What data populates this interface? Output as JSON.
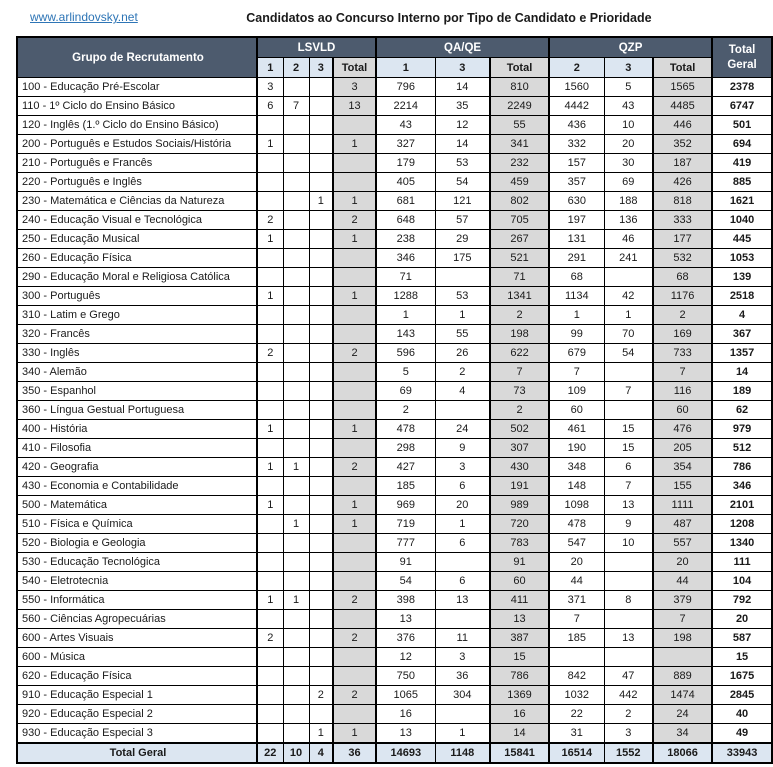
{
  "header": {
    "link": "www.arlindovsky.net",
    "title": "Candidatos ao Concurso Interno por Tipo de Candidato e Prioridade"
  },
  "colors": {
    "header_bg": "#4D5B6E",
    "subheader_blue": "#DCE6F1",
    "total_gray": "#D9D9D9",
    "footer_blue": "#DCE6F1",
    "link_blue": "#2E75B6"
  },
  "table": {
    "name_header": "Grupo de Recrutamento",
    "total_header": "Total Geral",
    "groups": [
      {
        "label": "LSVLD",
        "sub": [
          "1",
          "2",
          "3",
          "Total"
        ]
      },
      {
        "label": "QA/QE",
        "sub": [
          "1",
          "3",
          "Total"
        ]
      },
      {
        "label": "QZP",
        "sub": [
          "2",
          "3",
          "Total"
        ]
      }
    ],
    "rows": [
      {
        "name": "100 - Educação Pré-Escolar",
        "values": [
          "3",
          "",
          "",
          "3",
          "796",
          "14",
          "810",
          "1560",
          "5",
          "1565",
          "2378"
        ]
      },
      {
        "name": "110 - 1º Ciclo do Ensino Básico",
        "values": [
          "6",
          "7",
          "",
          "13",
          "2214",
          "35",
          "2249",
          "4442",
          "43",
          "4485",
          "6747"
        ]
      },
      {
        "name": "120 - Inglês (1.º Ciclo do Ensino Básico)",
        "values": [
          "",
          "",
          "",
          "",
          "43",
          "12",
          "55",
          "436",
          "10",
          "446",
          "501"
        ]
      },
      {
        "name": "200 - Português e Estudos Sociais/História",
        "values": [
          "1",
          "",
          "",
          "1",
          "327",
          "14",
          "341",
          "332",
          "20",
          "352",
          "694"
        ]
      },
      {
        "name": "210 - Português e Francês",
        "values": [
          "",
          "",
          "",
          "",
          "179",
          "53",
          "232",
          "157",
          "30",
          "187",
          "419"
        ]
      },
      {
        "name": "220 - Português e Inglês",
        "values": [
          "",
          "",
          "",
          "",
          "405",
          "54",
          "459",
          "357",
          "69",
          "426",
          "885"
        ]
      },
      {
        "name": "230 - Matemática e Ciências da Natureza",
        "values": [
          "",
          "",
          "1",
          "1",
          "681",
          "121",
          "802",
          "630",
          "188",
          "818",
          "1621"
        ]
      },
      {
        "name": "240 - Educação Visual e Tecnológica",
        "values": [
          "2",
          "",
          "",
          "2",
          "648",
          "57",
          "705",
          "197",
          "136",
          "333",
          "1040"
        ]
      },
      {
        "name": "250 - Educação Musical",
        "values": [
          "1",
          "",
          "",
          "1",
          "238",
          "29",
          "267",
          "131",
          "46",
          "177",
          "445"
        ]
      },
      {
        "name": "260 - Educação Física",
        "values": [
          "",
          "",
          "",
          "",
          "346",
          "175",
          "521",
          "291",
          "241",
          "532",
          "1053"
        ]
      },
      {
        "name": "290 - Educação Moral e Religiosa Católica",
        "values": [
          "",
          "",
          "",
          "",
          "71",
          "",
          "71",
          "68",
          "",
          "68",
          "139"
        ]
      },
      {
        "name": "300 - Português",
        "values": [
          "1",
          "",
          "",
          "1",
          "1288",
          "53",
          "1341",
          "1134",
          "42",
          "1176",
          "2518"
        ]
      },
      {
        "name": "310 - Latim e Grego",
        "values": [
          "",
          "",
          "",
          "",
          "1",
          "1",
          "2",
          "1",
          "1",
          "2",
          "4"
        ]
      },
      {
        "name": "320 - Francês",
        "values": [
          "",
          "",
          "",
          "",
          "143",
          "55",
          "198",
          "99",
          "70",
          "169",
          "367"
        ]
      },
      {
        "name": "330 - Inglês",
        "values": [
          "2",
          "",
          "",
          "2",
          "596",
          "26",
          "622",
          "679",
          "54",
          "733",
          "1357"
        ]
      },
      {
        "name": "340 - Alemão",
        "values": [
          "",
          "",
          "",
          "",
          "5",
          "2",
          "7",
          "7",
          "",
          "7",
          "14"
        ]
      },
      {
        "name": "350 - Espanhol",
        "values": [
          "",
          "",
          "",
          "",
          "69",
          "4",
          "73",
          "109",
          "7",
          "116",
          "189"
        ]
      },
      {
        "name": "360 - Língua Gestual Portuguesa",
        "values": [
          "",
          "",
          "",
          "",
          "2",
          "",
          "2",
          "60",
          "",
          "60",
          "62"
        ]
      },
      {
        "name": "400 - História",
        "values": [
          "1",
          "",
          "",
          "1",
          "478",
          "24",
          "502",
          "461",
          "15",
          "476",
          "979"
        ]
      },
      {
        "name": "410 - Filosofia",
        "values": [
          "",
          "",
          "",
          "",
          "298",
          "9",
          "307",
          "190",
          "15",
          "205",
          "512"
        ]
      },
      {
        "name": "420 - Geografia",
        "values": [
          "1",
          "1",
          "",
          "2",
          "427",
          "3",
          "430",
          "348",
          "6",
          "354",
          "786"
        ]
      },
      {
        "name": "430 - Economia e Contabilidade",
        "values": [
          "",
          "",
          "",
          "",
          "185",
          "6",
          "191",
          "148",
          "7",
          "155",
          "346"
        ]
      },
      {
        "name": "500 - Matemática",
        "values": [
          "1",
          "",
          "",
          "1",
          "969",
          "20",
          "989",
          "1098",
          "13",
          "1111",
          "2101"
        ]
      },
      {
        "name": "510 - Física e Química",
        "values": [
          "",
          "1",
          "",
          "1",
          "719",
          "1",
          "720",
          "478",
          "9",
          "487",
          "1208"
        ]
      },
      {
        "name": "520 - Biologia e Geologia",
        "values": [
          "",
          "",
          "",
          "",
          "777",
          "6",
          "783",
          "547",
          "10",
          "557",
          "1340"
        ]
      },
      {
        "name": "530 - Educação Tecnológica",
        "values": [
          "",
          "",
          "",
          "",
          "91",
          "",
          "91",
          "20",
          "",
          "20",
          "111"
        ]
      },
      {
        "name": "540 - Eletrotecnia",
        "values": [
          "",
          "",
          "",
          "",
          "54",
          "6",
          "60",
          "44",
          "",
          "44",
          "104"
        ]
      },
      {
        "name": "550 - Informática",
        "values": [
          "1",
          "1",
          "",
          "2",
          "398",
          "13",
          "411",
          "371",
          "8",
          "379",
          "792"
        ]
      },
      {
        "name": "560 - Ciências Agropecuárias",
        "values": [
          "",
          "",
          "",
          "",
          "13",
          "",
          "13",
          "7",
          "",
          "7",
          "20"
        ]
      },
      {
        "name": "600 - Artes Visuais",
        "values": [
          "2",
          "",
          "",
          "2",
          "376",
          "11",
          "387",
          "185",
          "13",
          "198",
          "587"
        ]
      },
      {
        "name": "600 - Música",
        "values": [
          "",
          "",
          "",
          "",
          "12",
          "3",
          "15",
          "",
          "",
          "",
          "15"
        ]
      },
      {
        "name": "620 - Educação Física",
        "values": [
          "",
          "",
          "",
          "",
          "750",
          "36",
          "786",
          "842",
          "47",
          "889",
          "1675"
        ]
      },
      {
        "name": "910 - Educação Especial 1",
        "values": [
          "",
          "",
          "2",
          "2",
          "1065",
          "304",
          "1369",
          "1032",
          "442",
          "1474",
          "2845"
        ]
      },
      {
        "name": "920 - Educação Especial 2",
        "values": [
          "",
          "",
          "",
          "",
          "16",
          "",
          "16",
          "22",
          "2",
          "24",
          "40"
        ]
      },
      {
        "name": "930 - Educação Especial 3",
        "values": [
          "",
          "",
          "1",
          "1",
          "13",
          "1",
          "14",
          "31",
          "3",
          "34",
          "49"
        ]
      }
    ],
    "footer": {
      "label": "Total Geral",
      "values": [
        "22",
        "10",
        "4",
        "36",
        "14693",
        "1148",
        "15841",
        "16514",
        "1552",
        "18066",
        "33943"
      ]
    }
  }
}
